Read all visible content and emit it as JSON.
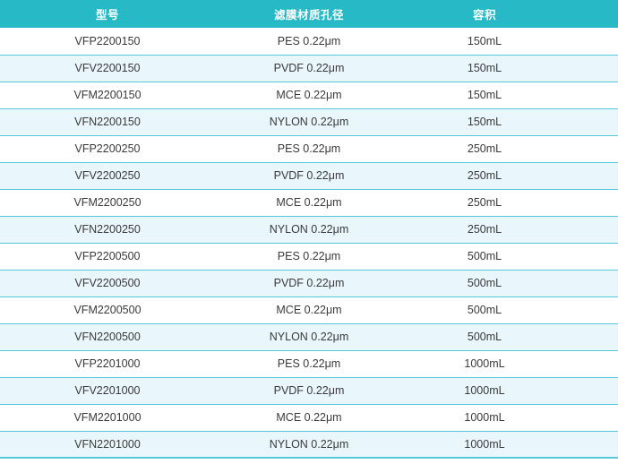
{
  "table": {
    "columns": [
      {
        "label": "型号"
      },
      {
        "label": "滤膜材质孔径"
      },
      {
        "label": "容积"
      }
    ],
    "rows": [
      [
        "VFP2200150",
        "PES 0.22μm",
        "150mL"
      ],
      [
        "VFV2200150",
        "PVDF 0.22μm",
        "150mL"
      ],
      [
        "VFM2200150",
        "MCE 0.22μm",
        "150mL"
      ],
      [
        "VFN2200150",
        "NYLON 0.22μm",
        "150mL"
      ],
      [
        "VFP2200250",
        "PES 0.22μm",
        "250mL"
      ],
      [
        "VFV2200250",
        "PVDF 0.22μm",
        "250mL"
      ],
      [
        "VFM2200250",
        "MCE 0.22μm",
        "250mL"
      ],
      [
        "VFN2200250",
        "NYLON 0.22μm",
        "250mL"
      ],
      [
        "VFP2200500",
        "PES 0.22μm",
        "500mL"
      ],
      [
        "VFV2200500",
        "PVDF 0.22μm",
        "500mL"
      ],
      [
        "VFM2200500",
        "MCE 0.22μm",
        "500mL"
      ],
      [
        "VFN2200500",
        "NYLON 0.22μm",
        "500mL"
      ],
      [
        "VFP2201000",
        "PES 0.22μm",
        "1000mL"
      ],
      [
        "VFV2201000",
        "PVDF 0.22μm",
        "1000mL"
      ],
      [
        "VFM2201000",
        "MCE 0.22μm",
        "1000mL"
      ],
      [
        "VFN2201000",
        "NYLON 0.22μm",
        "1000mL"
      ]
    ]
  },
  "colors": {
    "header_bg": "#28b9c7",
    "header_text": "#ffffff",
    "row_bg": "#ffffff",
    "row_alt_bg": "#e9f6fb",
    "separator": "#54c8d8",
    "cell_text": "#3a3a3a"
  }
}
